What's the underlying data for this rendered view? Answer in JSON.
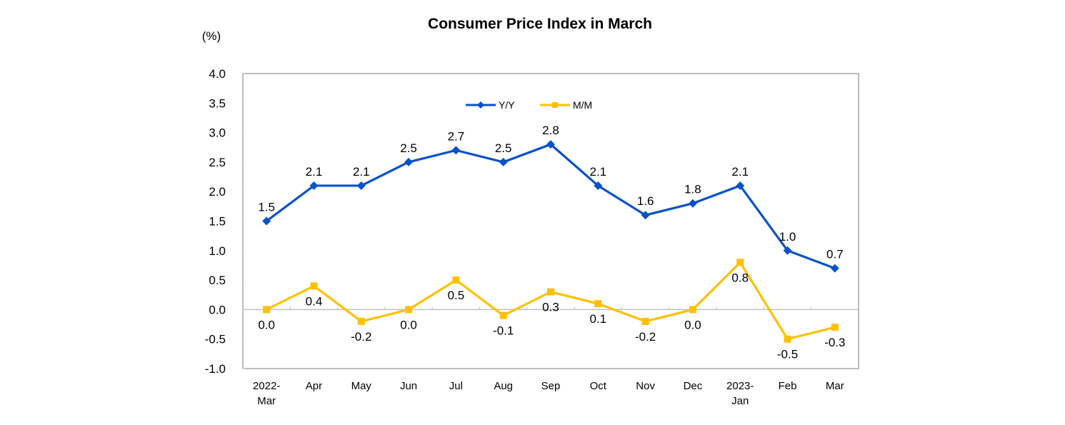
{
  "chart_data": {
    "type": "line",
    "title": "Consumer Price Index in March",
    "ylabel": "(%)",
    "xlabel": "",
    "ylim": [
      -1.0,
      4.0
    ],
    "ytick_step": 0.5,
    "yticks": [
      "4.0",
      "3.5",
      "3.0",
      "2.5",
      "2.0",
      "1.5",
      "1.0",
      "0.5",
      "0.0",
      "-0.5",
      "-1.0"
    ],
    "grid": false,
    "legend_position": "top-center",
    "categories": [
      [
        "2022-",
        "Mar"
      ],
      [
        "Apr"
      ],
      [
        "May"
      ],
      [
        "Jun"
      ],
      [
        "Jul"
      ],
      [
        "Aug"
      ],
      [
        "Sep"
      ],
      [
        "Oct"
      ],
      [
        "Nov"
      ],
      [
        "Dec"
      ],
      [
        "2023-",
        "Jan"
      ],
      [
        "Feb"
      ],
      [
        "Mar"
      ]
    ],
    "series": [
      {
        "name": "Y/Y",
        "color": "#0a52c9",
        "marker": "diamond",
        "label_position": "above",
        "values": [
          1.5,
          2.1,
          2.1,
          2.5,
          2.7,
          2.5,
          2.8,
          2.1,
          1.6,
          1.8,
          2.1,
          1.0,
          0.7
        ],
        "labels": [
          "1.5",
          "2.1",
          "2.1",
          "2.5",
          "2.7",
          "2.5",
          "2.8",
          "2.1",
          "1.6",
          "1.8",
          "2.1",
          "1.0",
          "0.7"
        ]
      },
      {
        "name": "M/M",
        "color": "#ffc000",
        "marker": "square",
        "label_position": "below",
        "values": [
          0.0,
          0.4,
          -0.2,
          0.0,
          0.5,
          -0.1,
          0.3,
          0.1,
          -0.2,
          0.0,
          0.8,
          -0.5,
          -0.3
        ],
        "labels": [
          "0.0",
          "0.4",
          "-0.2",
          "0.0",
          "0.5",
          "-0.1",
          "0.3",
          "0.1",
          "-0.2",
          "0.0",
          "0.8",
          "-0.5",
          "-0.3"
        ]
      }
    ]
  }
}
